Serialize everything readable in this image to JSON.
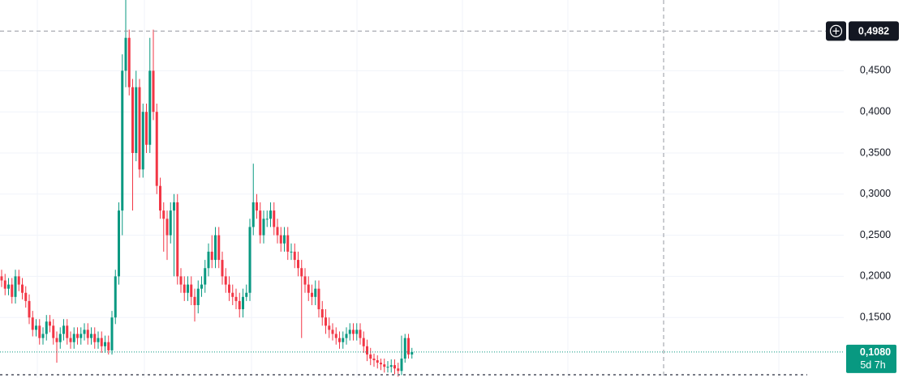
{
  "chart_data": {
    "type": "candlestick",
    "up_color": "#089981",
    "down_color": "#f23645",
    "grid": true,
    "ylim": [
      0.0764,
      0.536
    ],
    "yticks": [
      {
        "value": 0.15,
        "label": "0,1500"
      },
      {
        "value": 0.2,
        "label": "0,2000"
      },
      {
        "value": 0.25,
        "label": "0,2500"
      },
      {
        "value": 0.3,
        "label": "0,3000"
      },
      {
        "value": 0.35,
        "label": "0,3500"
      },
      {
        "value": 0.4,
        "label": "0,4000"
      },
      {
        "value": 0.45,
        "label": "0,4500"
      }
    ],
    "crosshair": {
      "value": 0.4982,
      "label": "0,4982"
    },
    "last_price": {
      "value": 0.108,
      "label": "0,1080"
    },
    "countdown": "5d 7h",
    "open": [
      0.2,
      0.195,
      0.185,
      0.19,
      0.175,
      0.2,
      0.19,
      0.18,
      0.17,
      0.15,
      0.135,
      0.14,
      0.125,
      0.13,
      0.145,
      0.14,
      0.125,
      0.12,
      0.13,
      0.14,
      0.125,
      0.12,
      0.13,
      0.125,
      0.13,
      0.135,
      0.125,
      0.13,
      0.12,
      0.125,
      0.115,
      0.12,
      0.11,
      0.15,
      0.2,
      0.28,
      0.45,
      0.49,
      0.43,
      0.35,
      0.43,
      0.33,
      0.4,
      0.36,
      0.45,
      0.4,
      0.31,
      0.28,
      0.27,
      0.25,
      0.28,
      0.29,
      0.2,
      0.19,
      0.18,
      0.19,
      0.175,
      0.165,
      0.185,
      0.19,
      0.21,
      0.23,
      0.22,
      0.25,
      0.22,
      0.2,
      0.19,
      0.18,
      0.175,
      0.17,
      0.16,
      0.175,
      0.18,
      0.26,
      0.29,
      0.28,
      0.25,
      0.27,
      0.27,
      0.28,
      0.26,
      0.25,
      0.24,
      0.25,
      0.23,
      0.23,
      0.22,
      0.21,
      0.2,
      0.19,
      0.18,
      0.175,
      0.185,
      0.16,
      0.15,
      0.14,
      0.135,
      0.13,
      0.125,
      0.12,
      0.125,
      0.13,
      0.135,
      0.13,
      0.135,
      0.125,
      0.115,
      0.105,
      0.1,
      0.098,
      0.095,
      0.093,
      0.09,
      0.09,
      0.092,
      0.088,
      0.085,
      0.1,
      0.125,
      0.105
    ],
    "high": [
      0.208,
      0.203,
      0.198,
      0.198,
      0.208,
      0.208,
      0.198,
      0.188,
      0.178,
      0.158,
      0.148,
      0.148,
      0.138,
      0.153,
      0.153,
      0.148,
      0.133,
      0.138,
      0.148,
      0.148,
      0.133,
      0.138,
      0.138,
      0.138,
      0.143,
      0.143,
      0.138,
      0.138,
      0.133,
      0.133,
      0.128,
      0.128,
      0.158,
      0.208,
      0.29,
      0.47,
      0.536,
      0.5,
      0.44,
      0.45,
      0.44,
      0.41,
      0.41,
      0.49,
      0.5,
      0.41,
      0.32,
      0.29,
      0.28,
      0.29,
      0.3,
      0.3,
      0.21,
      0.2,
      0.2,
      0.2,
      0.185,
      0.195,
      0.2,
      0.22,
      0.24,
      0.25,
      0.26,
      0.26,
      0.23,
      0.21,
      0.2,
      0.19,
      0.185,
      0.18,
      0.185,
      0.19,
      0.27,
      0.337,
      0.3,
      0.29,
      0.28,
      0.28,
      0.29,
      0.29,
      0.27,
      0.26,
      0.26,
      0.26,
      0.24,
      0.24,
      0.23,
      0.22,
      0.21,
      0.2,
      0.19,
      0.195,
      0.195,
      0.17,
      0.16,
      0.15,
      0.143,
      0.138,
      0.133,
      0.133,
      0.138,
      0.143,
      0.143,
      0.143,
      0.143,
      0.133,
      0.123,
      0.113,
      0.106,
      0.104,
      0.1,
      0.1,
      0.097,
      0.099,
      0.099,
      0.095,
      0.128,
      0.13,
      0.13,
      0.113
    ],
    "low": [
      0.187,
      0.177,
      0.177,
      0.167,
      0.167,
      0.182,
      0.172,
      0.162,
      0.142,
      0.127,
      0.127,
      0.117,
      0.117,
      0.122,
      0.132,
      0.117,
      0.095,
      0.112,
      0.122,
      0.117,
      0.112,
      0.112,
      0.117,
      0.117,
      0.122,
      0.117,
      0.117,
      0.112,
      0.112,
      0.107,
      0.107,
      0.105,
      0.105,
      0.142,
      0.19,
      0.25,
      0.43,
      0.42,
      0.28,
      0.34,
      0.32,
      0.32,
      0.35,
      0.35,
      0.39,
      0.3,
      0.27,
      0.23,
      0.22,
      0.24,
      0.2,
      0.19,
      0.18,
      0.17,
      0.17,
      0.165,
      0.145,
      0.155,
      0.175,
      0.18,
      0.2,
      0.21,
      0.21,
      0.21,
      0.19,
      0.18,
      0.17,
      0.165,
      0.16,
      0.15,
      0.15,
      0.17,
      0.17,
      0.25,
      0.27,
      0.24,
      0.24,
      0.26,
      0.26,
      0.25,
      0.24,
      0.23,
      0.23,
      0.22,
      0.22,
      0.21,
      0.2,
      0.125,
      0.18,
      0.17,
      0.165,
      0.165,
      0.15,
      0.14,
      0.13,
      0.125,
      0.122,
      0.117,
      0.112,
      0.112,
      0.117,
      0.122,
      0.122,
      0.122,
      0.117,
      0.107,
      0.097,
      0.092,
      0.09,
      0.088,
      0.086,
      0.083,
      0.083,
      0.083,
      0.081,
      0.078,
      0.08,
      0.095,
      0.1,
      0.1
    ],
    "close": [
      0.195,
      0.185,
      0.19,
      0.175,
      0.2,
      0.19,
      0.18,
      0.17,
      0.15,
      0.135,
      0.14,
      0.125,
      0.13,
      0.145,
      0.14,
      0.125,
      0.12,
      0.13,
      0.14,
      0.125,
      0.12,
      0.13,
      0.125,
      0.13,
      0.135,
      0.125,
      0.13,
      0.12,
      0.125,
      0.115,
      0.12,
      0.11,
      0.15,
      0.2,
      0.28,
      0.45,
      0.49,
      0.43,
      0.35,
      0.43,
      0.33,
      0.4,
      0.36,
      0.45,
      0.4,
      0.31,
      0.28,
      0.27,
      0.25,
      0.28,
      0.29,
      0.2,
      0.19,
      0.18,
      0.19,
      0.175,
      0.165,
      0.185,
      0.19,
      0.21,
      0.23,
      0.22,
      0.25,
      0.22,
      0.2,
      0.19,
      0.18,
      0.175,
      0.17,
      0.16,
      0.175,
      0.18,
      0.26,
      0.29,
      0.28,
      0.25,
      0.27,
      0.27,
      0.28,
      0.26,
      0.25,
      0.24,
      0.25,
      0.23,
      0.23,
      0.22,
      0.21,
      0.2,
      0.19,
      0.18,
      0.175,
      0.185,
      0.16,
      0.15,
      0.14,
      0.135,
      0.13,
      0.125,
      0.12,
      0.125,
      0.13,
      0.135,
      0.13,
      0.135,
      0.125,
      0.115,
      0.105,
      0.1,
      0.098,
      0.095,
      0.093,
      0.09,
      0.09,
      0.092,
      0.088,
      0.085,
      0.1,
      0.125,
      0.105,
      0.108
    ]
  }
}
